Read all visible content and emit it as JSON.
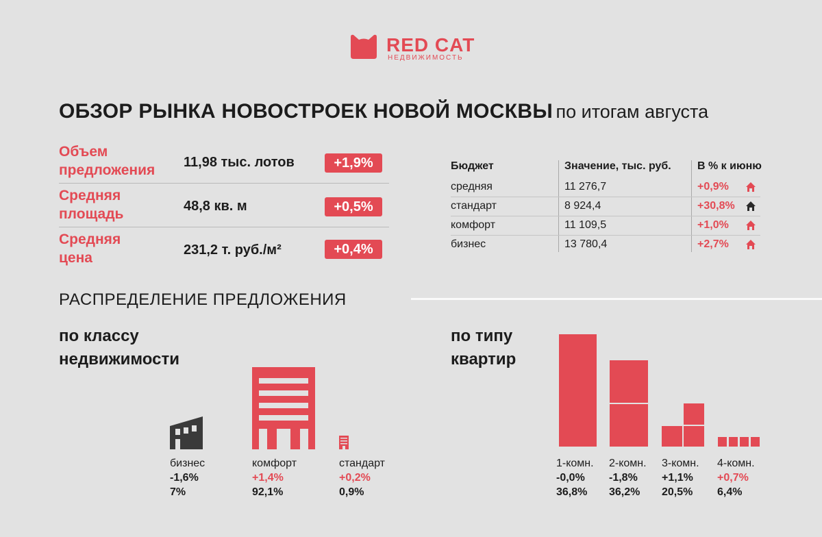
{
  "logo": {
    "brand": "RED CAT",
    "sub": "НЕДВИЖИМОСТЬ"
  },
  "title": {
    "main": "ОБЗОР РЫНКА НОВОСТРОЕК НОВОЙ МОСКВЫ",
    "sub": "по итогам августа"
  },
  "kpis": [
    {
      "label1": "Объем",
      "label2": "предложения",
      "value": "11,98 тыс. лотов",
      "change": "+1,9%"
    },
    {
      "label1": "Средняя",
      "label2": "площадь",
      "value": "48,8 кв. м",
      "change": "+0,5%"
    },
    {
      "label1": "Средняя",
      "label2": "цена",
      "value": "231,2 т. руб./м²",
      "change": "+0,4%"
    }
  ],
  "budget_table": {
    "headers": [
      "Бюджет",
      "Значение, тыс. руб.",
      "В % к июню"
    ],
    "rows": [
      {
        "name": "средняя",
        "value": "11 276,7",
        "change": "+0,9%",
        "icon": "house-red-icon"
      },
      {
        "name": "стандарт",
        "value": "8 924,4",
        "change": "+30,8%",
        "icon": "house-dark-icon"
      },
      {
        "name": "комфорт",
        "value": "11 109,5",
        "change": "+1,0%",
        "icon": "house-red-icon"
      },
      {
        "name": "бизнес",
        "value": "13 780,4",
        "change": "+2,7%",
        "icon": "house-red-icon"
      }
    ]
  },
  "section": {
    "title": "РАСПРЕДЕЛЕНИЕ ПРЕДЛОЖЕНИЯ"
  },
  "by_class": {
    "heading1": "по классу",
    "heading2": "недвижимости",
    "items": [
      {
        "name": "бизнес",
        "change": "-1,6%",
        "share": "7%",
        "color": "#3a3a3a"
      },
      {
        "name": "комфорт",
        "change": "+1,4%",
        "share": "92,1%",
        "color": "#e34a54"
      },
      {
        "name": "стандарт",
        "change": "+0,2%",
        "share": "0,9%",
        "color": "#e34a54"
      }
    ]
  },
  "by_type": {
    "heading1": "по типу",
    "heading2": "квартир",
    "items": [
      {
        "name": "1-комн.",
        "change": "-0,0%",
        "share": "36,8%"
      },
      {
        "name": "2-комн.",
        "change": "-1,8%",
        "share": "36,2%"
      },
      {
        "name": "3-комн.",
        "change": "+1,1%",
        "share": "20,5%"
      },
      {
        "name": "4-комн.",
        "change": "+0,7%",
        "share": "6,4%"
      }
    ]
  },
  "colors": {
    "accent": "#e34a54",
    "dark": "#3a3a3a",
    "background": "#e2e2e2"
  }
}
